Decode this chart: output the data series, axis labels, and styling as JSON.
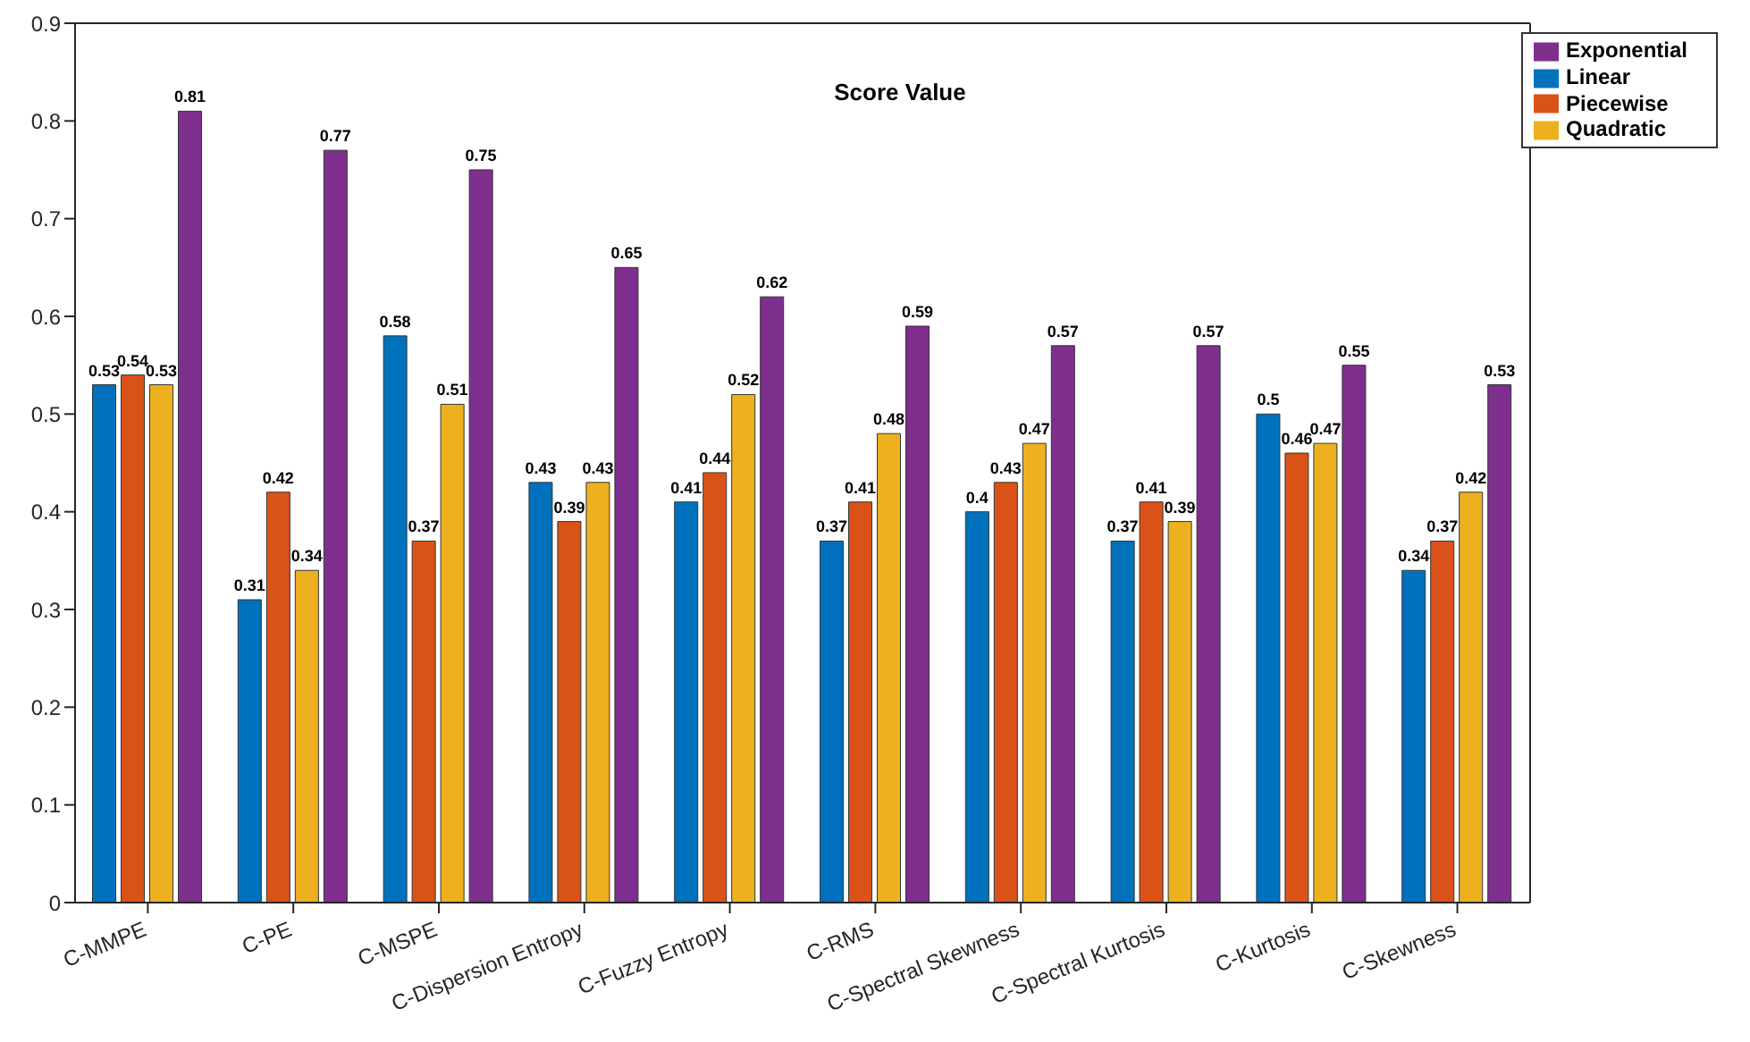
{
  "chart_data": {
    "type": "bar",
    "title": "Score Value",
    "categories": [
      "C-MMPE",
      "C-PE",
      "C-MSPE",
      "C-Dispersion Entropy",
      "C-Fuzzy Entropy",
      "C-RMS",
      "C-Spectral Skewness",
      "C-Spectral Kurtosis",
      "C-Kurtosis",
      "C-Skewness"
    ],
    "series": [
      {
        "name": "Linear",
        "color": "#0072bd",
        "values": [
          0.53,
          0.31,
          0.58,
          0.43,
          0.41,
          0.37,
          0.4,
          0.37,
          0.5,
          0.34
        ]
      },
      {
        "name": "Piecewise",
        "color": "#d95319",
        "values": [
          0.54,
          0.42,
          0.37,
          0.39,
          0.44,
          0.41,
          0.43,
          0.41,
          0.46,
          0.37
        ]
      },
      {
        "name": "Quadratic",
        "color": "#edb120",
        "values": [
          0.53,
          0.34,
          0.51,
          0.43,
          0.52,
          0.48,
          0.47,
          0.39,
          0.47,
          0.42
        ]
      },
      {
        "name": "Exponential",
        "color": "#7e2f8e",
        "values": [
          0.81,
          0.77,
          0.75,
          0.65,
          0.62,
          0.59,
          0.57,
          0.57,
          0.55,
          0.53
        ]
      }
    ],
    "ylim": [
      0,
      0.9
    ],
    "yticks": [
      0,
      0.1,
      0.2,
      0.3,
      0.4,
      0.5,
      0.6,
      0.7,
      0.8,
      0.9
    ],
    "grid": false,
    "legend": "top right",
    "data_labels": true
  }
}
